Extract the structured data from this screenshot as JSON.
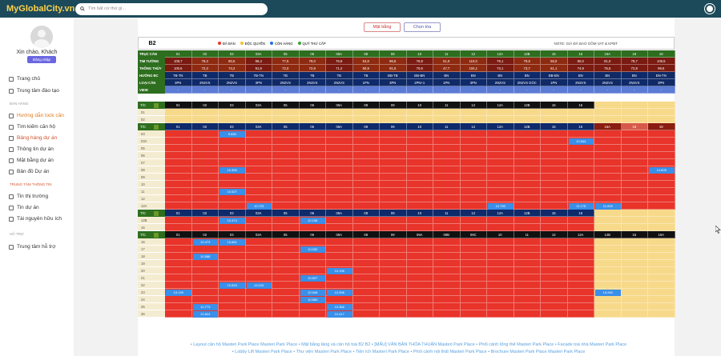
{
  "app": {
    "logo": "MyGlobalCity.vn",
    "search_placeholder": "Tìm bất cứ thứ gì..."
  },
  "user": {
    "greeting": "Xin chào, Khách",
    "login": "Đăng nhập"
  },
  "sidebar": {
    "items": [
      {
        "label": "Trang chủ"
      },
      {
        "label": "Trung tâm đào tạo"
      }
    ],
    "section_sales": "BÁN HÀNG",
    "sales_items": [
      {
        "label": "Hướng dẫn lock căn"
      },
      {
        "label": "Tìm kiếm căn hộ"
      },
      {
        "label": "Bảng hàng dự án"
      },
      {
        "label": "Thông tin dự án"
      },
      {
        "label": "Mặt bằng dự án"
      },
      {
        "label": "Bản đồ Dự án"
      }
    ],
    "section_info": "TRUNG TÂM THÔNG TIN",
    "info_items": [
      {
        "label": "Tin thị trường"
      },
      {
        "label": "Tin dự án"
      },
      {
        "label": "Tài nguyên hữu ích"
      }
    ],
    "section_support": "HỖ TRỢ",
    "support_items": [
      {
        "label": "Trung tâm hỗ trợ"
      }
    ]
  },
  "toolbar": {
    "floorplan": "Mặt bằng",
    "choose": "Chọn tòa"
  },
  "building": "B2",
  "legend": [
    {
      "label": "ĐÃ BÁN",
      "color": "#e8342a"
    },
    {
      "label": "ĐỘC QUYỀN",
      "color": "#f2c12e"
    },
    {
      "label": "CÒN HÀNG",
      "color": "#1f6fe0"
    },
    {
      "label": "QUỸ THỨ CẤP",
      "color": "#3aa336"
    }
  ],
  "note": "NOTE: GIÁ ĐÃ BAO GỒM VAT & KPBT",
  "spec_labels": [
    "TRỤC CĂN",
    "TIM TƯỜNG",
    "THÔNG THỦY",
    "HƯỚNG BC",
    "LOẠI CĂN",
    "VIEW"
  ],
  "axes": [
    "01",
    "02",
    "03",
    "03A",
    "05",
    "06",
    "06A",
    "08",
    "09",
    "10",
    "11",
    "12",
    "12A",
    "12B",
    "15",
    "16",
    "16A",
    "18",
    "19"
  ],
  "tim_tuong": [
    "108,7",
    "78,3",
    "80,5",
    "98,4",
    "77,5",
    "79,0",
    "76,8",
    "54,8",
    "96,6",
    "76,8",
    "51,9",
    "110,0",
    "79,1",
    "79,6",
    "56,0",
    "80,0",
    "81,0",
    "78,7",
    "106,5"
  ],
  "thong_thuy": [
    "100,6",
    "72,3",
    "74,2",
    "91,8",
    "72,0",
    "72,9",
    "71,2",
    "50,9",
    "91,5",
    "70,6",
    "47,7",
    "104,1",
    "73,1",
    "73,7",
    "51,1",
    "74,9",
    "75,5",
    "72,8",
    "99,5"
  ],
  "huong": [
    "TB-TN",
    "TB",
    "TB",
    "TB-TN",
    "TB",
    "TB",
    "TB",
    "TB",
    "ĐB-TB",
    "ĐB-BN",
    "BN",
    "BN",
    "BN",
    "BN",
    "ĐB-BN",
    "BN",
    "BN",
    "BN",
    "ĐN-TN"
  ],
  "loai": [
    "3PN",
    "2N2VS",
    "2N2VS",
    "3PN",
    "2N2VS",
    "2N2VS",
    "2N2VS",
    "1PN",
    "3PN",
    "2PN+1",
    "1PN",
    "3PN",
    "2N2VS",
    "2N2VS GÓC",
    "1PN",
    "2N2VS",
    "2N2VS",
    "2N2VS",
    "3PN"
  ],
  "view": [
    "-",
    "-",
    "-",
    "-",
    "-",
    "-",
    "-",
    "-",
    "-",
    "-",
    "-",
    "-",
    "-",
    "-",
    "-",
    "-",
    "-",
    "-",
    "-"
  ],
  "header_block2": [
    "01",
    "02",
    "03",
    "03A",
    "05",
    "06",
    "06A",
    "08",
    "09",
    "10",
    "11",
    "12",
    "12A",
    "12B",
    "15",
    "16"
  ],
  "header_block3": [
    "01",
    "02",
    "03",
    "03A",
    "05",
    "06",
    "06A",
    "08",
    "09",
    "10",
    "11",
    "12",
    "12A",
    "12B",
    "15",
    "16",
    "16A",
    "18",
    "19"
  ],
  "header_block5": [
    "01",
    "02",
    "03",
    "03A",
    "05",
    "06",
    "06A",
    "08",
    "09",
    "09A",
    "09B",
    "09C",
    "10",
    "11",
    "12",
    "12A",
    "12B",
    "15",
    "16A"
  ],
  "floors_a": [
    "01",
    "02"
  ],
  "floors_b": [
    "03",
    "03A",
    "05",
    "06",
    "07",
    "08",
    "09",
    "10",
    "11",
    "12",
    "12A"
  ],
  "floors_c": [
    "12B",
    "15"
  ],
  "floors_d": [
    "16",
    "17",
    "18",
    "19",
    "20",
    "21",
    "22",
    "23",
    "24",
    "25",
    "26"
  ],
  "chips": [
    {
      "r": "04",
      "c": 15,
      "t": "9.984"
    },
    {
      "r": "03",
      "c": 2,
      "t": "9.838"
    },
    {
      "r": "03A",
      "c": 15,
      "t": "10.544"
    },
    {
      "r": "08",
      "c": 2,
      "t": "10.369"
    },
    {
      "r": "08",
      "c": 18,
      "t": "14.605"
    },
    {
      "r": "11",
      "c": 2,
      "t": "10.527"
    },
    {
      "r": "12A",
      "c": 3,
      "t": "10.723"
    },
    {
      "r": "12A",
      "c": 12,
      "t": "10.790"
    },
    {
      "r": "12A",
      "c": 15,
      "t": "11.175"
    },
    {
      "r": "12A",
      "c": 16,
      "t": "11.009"
    },
    {
      "r": "12B",
      "c": 2,
      "t": "10.474"
    },
    {
      "r": "12B",
      "c": 5,
      "t": "10.156"
    },
    {
      "r": "16",
      "c": 1,
      "t": "10.473"
    },
    {
      "r": "16",
      "c": 2,
      "t": "10.661"
    },
    {
      "r": "17",
      "c": 5,
      "t": "10.032"
    },
    {
      "r": "18",
      "c": 1,
      "t": "10.588"
    },
    {
      "r": "20",
      "c": 6,
      "t": "10.196"
    },
    {
      "r": "21",
      "c": 5,
      "t": "10.527"
    },
    {
      "r": "22",
      "c": 3,
      "t": "11.168"
    },
    {
      "r": "22a",
      "c": 2,
      "t": "10.653"
    },
    {
      "r": "22a",
      "c": 3,
      "t": "13.210"
    },
    {
      "r": "23",
      "c": 0,
      "t": "15.139"
    },
    {
      "r": "23",
      "c": 5,
      "t": "10.546"
    },
    {
      "r": "23",
      "c": 6,
      "t": "10.396"
    },
    {
      "r": "23",
      "c": 16,
      "t": "15.280"
    },
    {
      "r": "24",
      "c": 5,
      "t": "10.580"
    },
    {
      "r": "25",
      "c": 1,
      "t": "10.773"
    },
    {
      "r": "25",
      "c": 6,
      "t": "10.366"
    },
    {
      "r": "26",
      "c": 1,
      "t": "10.824"
    },
    {
      "r": "26",
      "c": 6,
      "t": "10.417"
    }
  ],
  "links_line1": "• Layout căn hộ Masteri Park Place Masteri Park Place   • Mặt bằng tầng và căn hộ toà B2 B2   • [MẪU] VĂN BẢN THỎA THUẬN Masteri Park Place   • Phối cảnh tổng thể Masteri Park Place   • Facade toà nhà Masteri Park Place",
  "links_line2": "• Lobby Lift Masteri Park Place   • Thư viện Masteri Park Place   • Tiện ích Masteri Park Place   • Phối cảnh nội thất Masteri Park Place   • Brochure Masteri Park Place Masteri Park Place"
}
